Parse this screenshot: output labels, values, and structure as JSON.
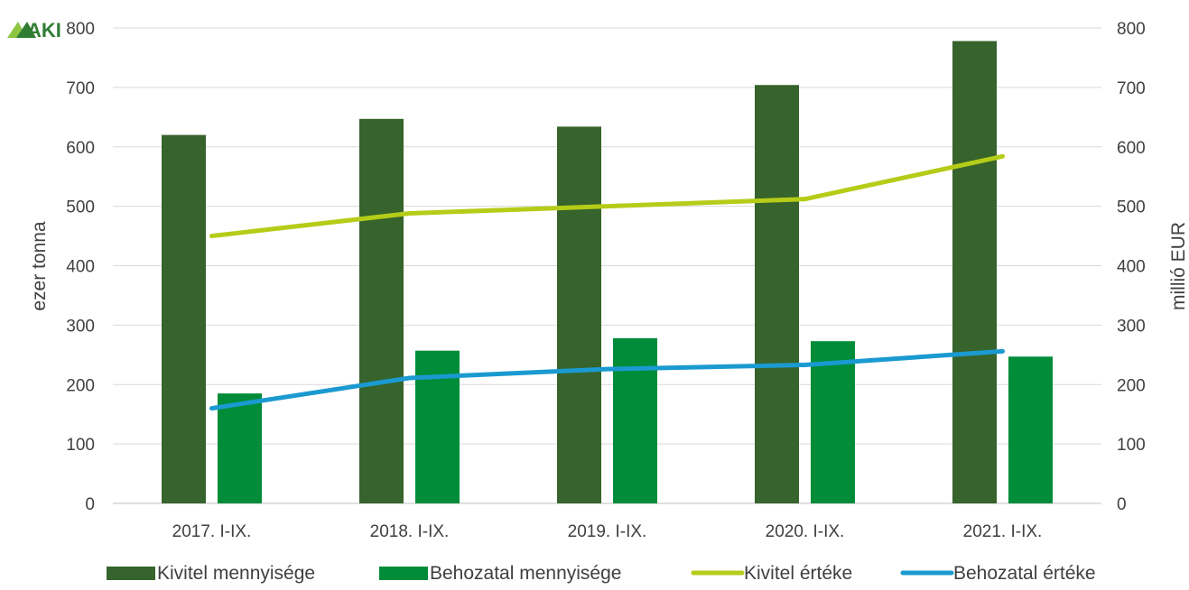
{
  "logo": {
    "text": "AKI",
    "color": "#8dc63f"
  },
  "chart_data": {
    "type": "bar",
    "categories": [
      "2017. I-IX.",
      "2018. I-IX.",
      "2019. I-IX.",
      "2020. I-IX.",
      "2021. I-IX."
    ],
    "series": [
      {
        "name": "Kivitel mennyisége",
        "type": "bar",
        "axis": "left",
        "color": "#37632c",
        "values": [
          620,
          647,
          634,
          704,
          778
        ]
      },
      {
        "name": "Behozatal mennyisége",
        "type": "bar",
        "axis": "left",
        "color": "#008c39",
        "values": [
          185,
          257,
          278,
          273,
          247
        ]
      },
      {
        "name": "Kivitel értéke",
        "type": "line",
        "axis": "right",
        "color": "#b5cc18",
        "values": [
          450,
          488,
          500,
          512,
          584
        ]
      },
      {
        "name": "Behozatal értéke",
        "type": "line",
        "axis": "right",
        "color": "#1a9ad0",
        "values": [
          160,
          211,
          226,
          233,
          256
        ]
      }
    ],
    "ylabel": "ezer tonna",
    "y2label": "millió EUR",
    "ylim": [
      0,
      800
    ],
    "y2lim": [
      0,
      800
    ],
    "yticks": [
      0,
      100,
      200,
      300,
      400,
      500,
      600,
      700,
      800
    ],
    "y2ticks": [
      0,
      100,
      200,
      300,
      400,
      500,
      600,
      700,
      800
    ],
    "grid": true,
    "legend_position": "bottom"
  }
}
